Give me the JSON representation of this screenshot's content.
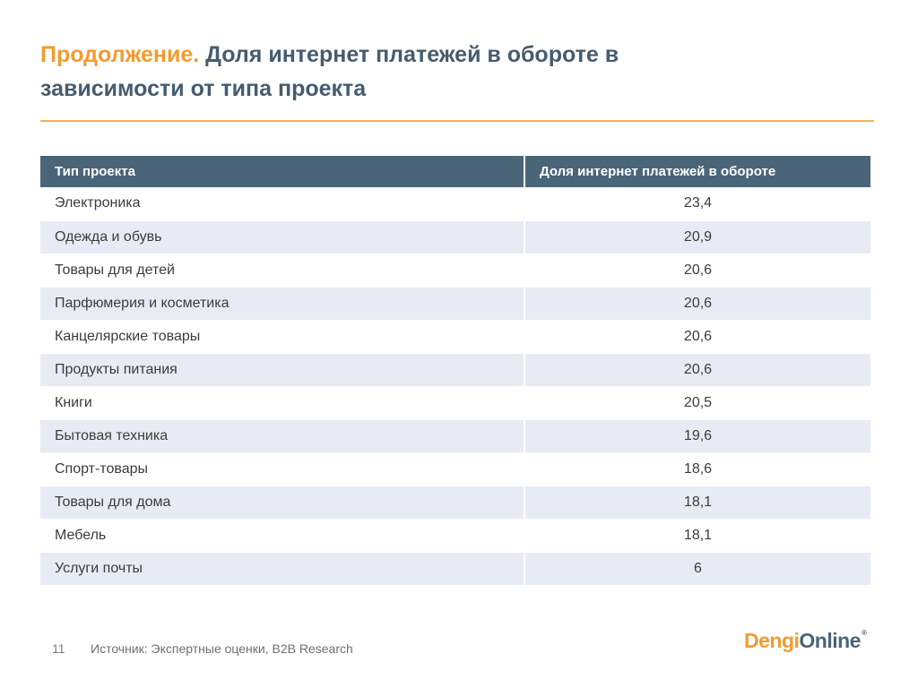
{
  "title": {
    "accent": "Продолжение.",
    "line1": "Доля интернет платежей в обороте в",
    "line2": "зависимости от  типа проекта"
  },
  "table": {
    "headers": [
      "Тип проекта",
      "Доля интернет платежей в обороте"
    ],
    "rows": [
      {
        "type": "Электроника",
        "value": "23,4"
      },
      {
        "type": "Одежда и обувь",
        "value": "20,9"
      },
      {
        "type": "Товары для детей",
        "value": "20,6"
      },
      {
        "type": "Парфюмерия и косметика",
        "value": "20,6"
      },
      {
        "type": "Канцелярские товары",
        "value": "20,6"
      },
      {
        "type": "Продукты питания",
        "value": "20,6"
      },
      {
        "type": "Книги",
        "value": "20,5"
      },
      {
        "type": "Бытовая техника",
        "value": "19,6"
      },
      {
        "type": "Спорт-товары",
        "value": "18,6"
      },
      {
        "type": "Товары для дома",
        "value": "18,1"
      },
      {
        "type": "Мебель",
        "value": "18,1"
      },
      {
        "type": "Услуги почты",
        "value": "6"
      }
    ]
  },
  "footer": {
    "page_number": "11",
    "source": "Источник: Экспертные оценки, B2B Research"
  },
  "logo": {
    "part_a": "Dengi",
    "part_b": "Online",
    "mark": "®"
  },
  "colors": {
    "accent": "#f39b2f",
    "header_bg": "#4a6578",
    "alt_row_bg": "#e8ebf4",
    "title_text": "#465c6e"
  }
}
